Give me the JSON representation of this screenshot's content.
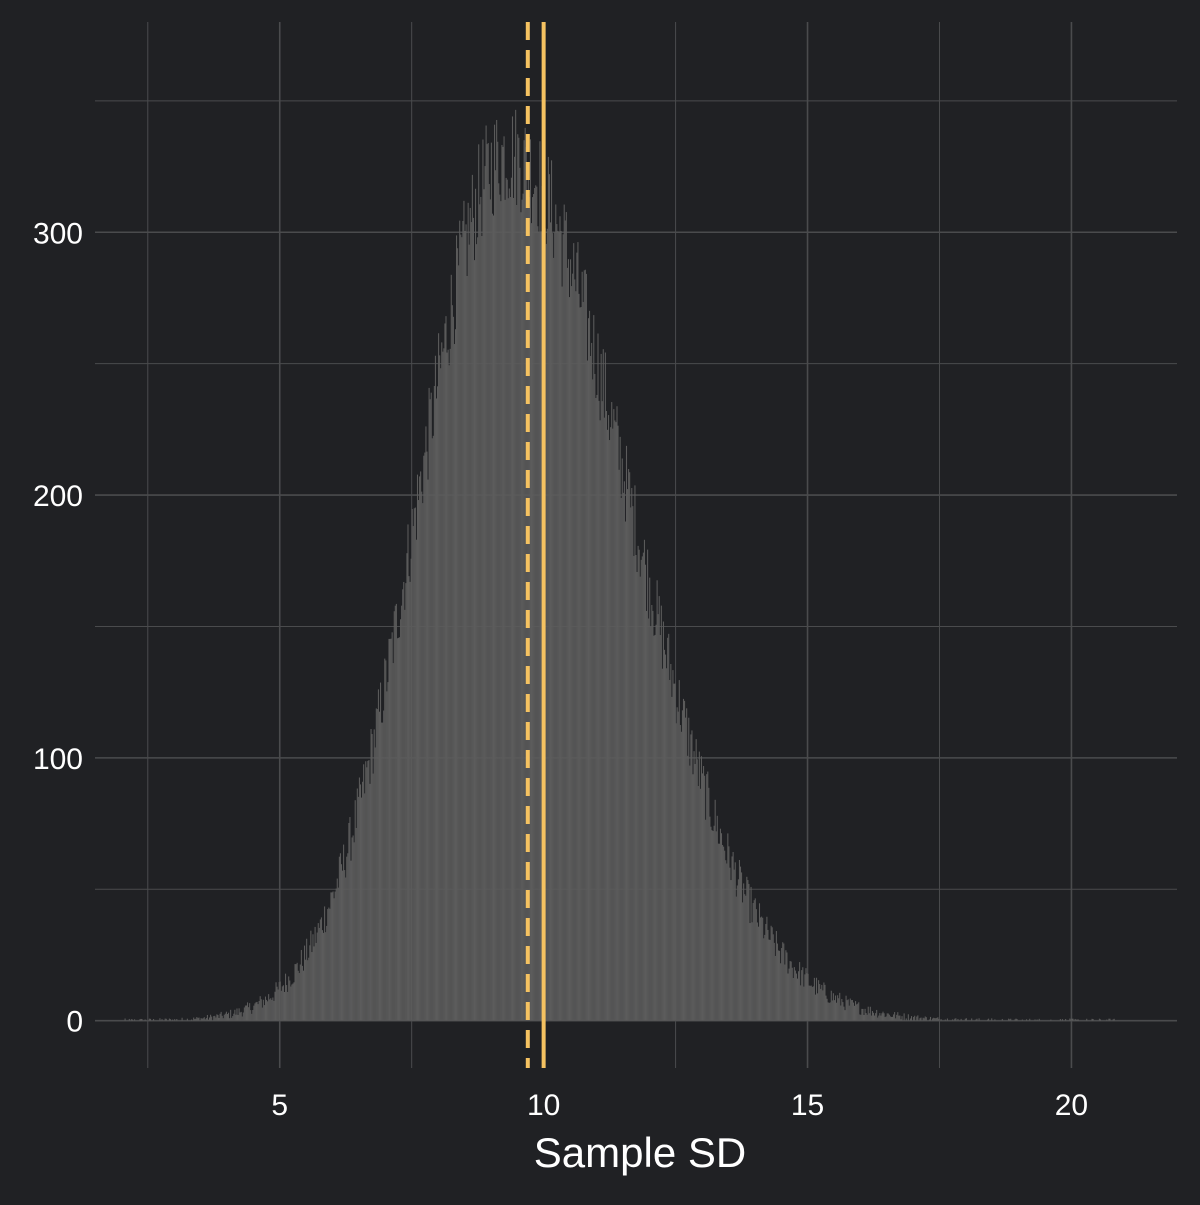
{
  "chart_data": {
    "type": "bar",
    "xlabel": "Sample SD",
    "ylabel": "",
    "xlim": [
      1.5,
      22
    ],
    "ylim": [
      -18,
      380
    ],
    "x_ticks": [
      5,
      10,
      15,
      20
    ],
    "y_ticks": [
      0,
      100,
      200,
      300
    ],
    "x_tick_labels": [
      "5",
      "10",
      "15",
      "20"
    ],
    "y_tick_labels": [
      "0",
      "100",
      "200",
      "300"
    ],
    "bin_width": 0.02,
    "grid": true,
    "histogram_summary": {
      "mode": 9.3,
      "peak_count": 330,
      "left_sd": 1.68,
      "right_sd": 2.3,
      "min_x": 2.0,
      "max_x": 21.0
    },
    "reference_lines": [
      {
        "name": "dashed",
        "x": 9.7,
        "style": "dashed"
      },
      {
        "name": "solid",
        "x": 10.0,
        "style": "solid"
      }
    ],
    "colors": {
      "background": "#202124",
      "bars": "#5c5c5c",
      "grid": "#4a4b4d",
      "reference": "#f5c261",
      "text": "#ffffff"
    }
  }
}
